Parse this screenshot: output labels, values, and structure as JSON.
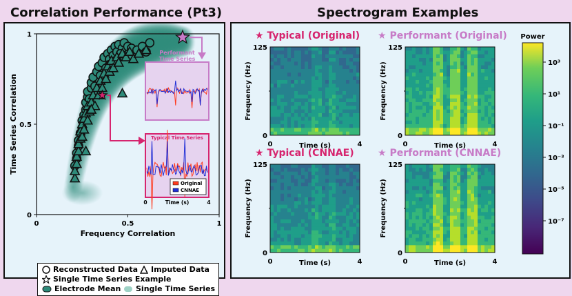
{
  "titles": {
    "left": "Correlation Performance (Pt3)",
    "right": "Spectrogram Examples"
  },
  "legend": {
    "reconstructed": "Reconstructed Data",
    "imputed": "Imputed Data",
    "single_example": "Single Time Series Example",
    "electrode_mean": "Electrode Mean",
    "single_series": "Single Time Series"
  },
  "insets": {
    "performant_title": "Performant Time Series",
    "typical_title": "Typical Time Series",
    "legend_original": "Original",
    "legend_cnnae": "CNNAE",
    "time_label": "Time (s)",
    "time_ticks": [
      "0",
      "4"
    ]
  },
  "spectrograms": {
    "typical_original": "Typical (Original)",
    "performant_original": "Performant (Original)",
    "typical_cnnae": "Typical (CNNAE)",
    "performant_cnnae": "Performant (CNNAE)",
    "ylabel": "Frequency (Hz)",
    "xlabel": "Time (s)",
    "y_ticks": [
      "125",
      "0"
    ],
    "x_ticks": [
      "0",
      "4"
    ]
  },
  "colorbar": {
    "label": "Power",
    "ticks": [
      "10³",
      "10¹",
      "10⁻¹",
      "10⁻³",
      "10⁻⁵",
      "10⁻⁷"
    ]
  },
  "colors": {
    "teal": "#2e8b7a",
    "teal_light": "#9fd2c6",
    "typical_star": "#d6246e",
    "performant_star": "#c77bc7",
    "original_line": "#ff3b1f",
    "cnnae_line": "#1f2ed6"
  },
  "chart_data": {
    "type": "scatter",
    "title": "Correlation Performance (Pt3)",
    "xlabel": "Frequency Correlation",
    "ylabel": "Time Series Correlation",
    "xlim": [
      0,
      1
    ],
    "ylim": [
      0,
      1
    ],
    "x_ticks": [
      "0",
      "0.5",
      "1"
    ],
    "y_ticks": [
      "0",
      "0.5",
      "1"
    ],
    "series": [
      {
        "name": "Reconstructed Data",
        "marker": "circle",
        "points": [
          [
            0.21,
            0.27
          ],
          [
            0.22,
            0.31
          ],
          [
            0.22,
            0.34
          ],
          [
            0.23,
            0.38
          ],
          [
            0.23,
            0.41
          ],
          [
            0.24,
            0.45
          ],
          [
            0.25,
            0.48
          ],
          [
            0.25,
            0.52
          ],
          [
            0.26,
            0.55
          ],
          [
            0.27,
            0.58
          ],
          [
            0.27,
            0.62
          ],
          [
            0.28,
            0.65
          ],
          [
            0.28,
            0.68
          ],
          [
            0.29,
            0.64
          ],
          [
            0.3,
            0.7
          ],
          [
            0.3,
            0.73
          ],
          [
            0.31,
            0.76
          ],
          [
            0.32,
            0.71
          ],
          [
            0.33,
            0.79
          ],
          [
            0.34,
            0.82
          ],
          [
            0.35,
            0.77
          ],
          [
            0.36,
            0.84
          ],
          [
            0.37,
            0.87
          ],
          [
            0.38,
            0.81
          ],
          [
            0.39,
            0.89
          ],
          [
            0.4,
            0.86
          ],
          [
            0.41,
            0.91
          ],
          [
            0.42,
            0.88
          ],
          [
            0.43,
            0.93
          ],
          [
            0.44,
            0.9
          ],
          [
            0.45,
            0.94
          ],
          [
            0.47,
            0.92
          ],
          [
            0.48,
            0.95
          ],
          [
            0.5,
            0.93
          ],
          [
            0.52,
            0.92
          ],
          [
            0.55,
            0.91
          ],
          [
            0.58,
            0.93
          ],
          [
            0.6,
            0.9
          ],
          [
            0.62,
            0.95
          ],
          [
            0.46,
            0.89
          ],
          [
            0.43,
            0.85
          ],
          [
            0.4,
            0.83
          ]
        ]
      },
      {
        "name": "Imputed Data",
        "marker": "triangle",
        "points": [
          [
            0.21,
            0.2
          ],
          [
            0.21,
            0.24
          ],
          [
            0.22,
            0.28
          ],
          [
            0.22,
            0.32
          ],
          [
            0.23,
            0.35
          ],
          [
            0.23,
            0.39
          ],
          [
            0.24,
            0.42
          ],
          [
            0.24,
            0.46
          ],
          [
            0.25,
            0.43
          ],
          [
            0.25,
            0.5
          ],
          [
            0.26,
            0.47
          ],
          [
            0.26,
            0.53
          ],
          [
            0.27,
            0.56
          ],
          [
            0.28,
            0.52
          ],
          [
            0.28,
            0.6
          ],
          [
            0.29,
            0.57
          ],
          [
            0.3,
            0.62
          ],
          [
            0.31,
            0.66
          ],
          [
            0.32,
            0.6
          ],
          [
            0.33,
            0.7
          ],
          [
            0.34,
            0.66
          ],
          [
            0.35,
            0.74
          ],
          [
            0.36,
            0.7
          ],
          [
            0.37,
            0.78
          ],
          [
            0.38,
            0.75
          ],
          [
            0.39,
            0.82
          ],
          [
            0.4,
            0.79
          ],
          [
            0.41,
            0.85
          ],
          [
            0.42,
            0.81
          ],
          [
            0.44,
            0.87
          ],
          [
            0.45,
            0.84
          ],
          [
            0.47,
            0.89
          ],
          [
            0.49,
            0.87
          ],
          [
            0.51,
            0.9
          ],
          [
            0.53,
            0.86
          ],
          [
            0.56,
            0.89
          ],
          [
            0.6,
            0.91
          ],
          [
            0.47,
            0.67
          ],
          [
            0.3,
            0.58
          ],
          [
            0.27,
            0.35
          ]
        ]
      },
      {
        "name": "Single Time Series Example",
        "marker": "star",
        "points": [
          [
            0.8,
            0.98
          ],
          [
            0.36,
            0.66
          ]
        ]
      }
    ]
  }
}
